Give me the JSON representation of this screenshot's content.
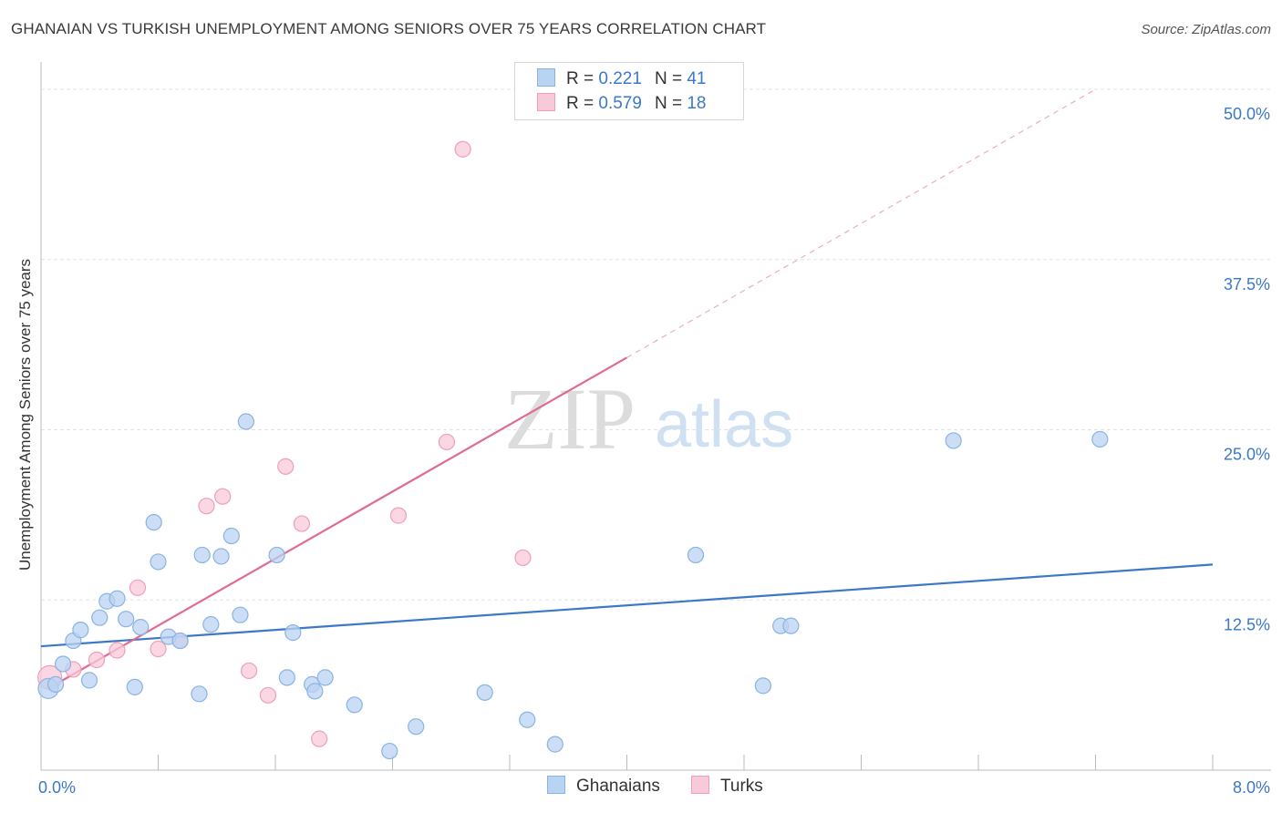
{
  "header": {
    "title": "GHANAIAN VS TURKISH UNEMPLOYMENT AMONG SENIORS OVER 75 YEARS CORRELATION CHART",
    "source": "Source: ZipAtlas.com"
  },
  "watermark": {
    "part1": "ZIP",
    "part2": "atlas"
  },
  "legend_top": {
    "rows": [
      {
        "r_label": "R =",
        "r_value": "0.221",
        "n_label": "N =",
        "n_value": "41"
      },
      {
        "r_label": "R =",
        "r_value": "0.579",
        "n_label": "N =",
        "n_value": "18"
      }
    ]
  },
  "legend_bottom": {
    "items": [
      "Ghanaians",
      "Turks"
    ]
  },
  "colors": {
    "ghanaians_fill": "#b9d3f2",
    "ghanaians_stroke": "#8ab3e3",
    "ghanaians_line": "#3b78c9",
    "turks_fill": "#f8c9d8",
    "turks_stroke": "#ef9fb9",
    "turks_line": "#e06a93",
    "tick_text": "#3b78c9",
    "grid": "#e3e3e3"
  },
  "chart_data": {
    "type": "scatter",
    "title": "GHANAIAN VS TURKISH UNEMPLOYMENT AMONG SENIORS OVER 75 YEARS CORRELATION CHART",
    "xlabel": "",
    "ylabel": "Unemployment Among Seniors over 75 years",
    "xlim": [
      0,
      8
    ],
    "ylim": [
      0,
      50
    ],
    "x_tick_labels": [
      "0.0%",
      "8.0%"
    ],
    "y_ticks": [
      12.5,
      25,
      37.5,
      50
    ],
    "y_tick_labels": [
      "12.5%",
      "25.0%",
      "37.5%",
      "50.0%"
    ],
    "grid": true,
    "legend": "bottom-center",
    "series": [
      {
        "name": "Ghanaians",
        "points": [
          [
            0.05,
            6.0
          ],
          [
            0.1,
            6.3
          ],
          [
            0.15,
            7.8
          ],
          [
            0.22,
            9.5
          ],
          [
            0.27,
            10.3
          ],
          [
            0.33,
            6.6
          ],
          [
            0.4,
            11.2
          ],
          [
            0.45,
            12.4
          ],
          [
            0.52,
            12.6
          ],
          [
            0.58,
            11.1
          ],
          [
            0.64,
            6.1
          ],
          [
            0.68,
            10.5
          ],
          [
            0.77,
            18.2
          ],
          [
            0.8,
            15.3
          ],
          [
            0.87,
            9.8
          ],
          [
            0.95,
            9.5
          ],
          [
            1.08,
            5.6
          ],
          [
            1.1,
            15.8
          ],
          [
            1.16,
            10.7
          ],
          [
            1.23,
            15.7
          ],
          [
            1.3,
            17.2
          ],
          [
            1.36,
            11.4
          ],
          [
            1.4,
            25.6
          ],
          [
            1.61,
            15.8
          ],
          [
            1.68,
            6.8
          ],
          [
            1.72,
            10.1
          ],
          [
            1.85,
            6.3
          ],
          [
            1.87,
            5.8
          ],
          [
            1.94,
            6.8
          ],
          [
            2.14,
            4.8
          ],
          [
            2.38,
            1.4
          ],
          [
            2.56,
            3.2
          ],
          [
            3.03,
            5.7
          ],
          [
            3.32,
            3.7
          ],
          [
            3.51,
            1.9
          ],
          [
            4.47,
            15.8
          ],
          [
            4.93,
            6.2
          ],
          [
            5.05,
            10.6
          ],
          [
            5.12,
            10.6
          ],
          [
            6.23,
            24.2
          ],
          [
            7.23,
            24.3
          ]
        ]
      },
      {
        "name": "Turks",
        "points": [
          [
            0.06,
            6.8
          ],
          [
            0.22,
            7.4
          ],
          [
            0.38,
            8.1
          ],
          [
            0.52,
            8.8
          ],
          [
            0.66,
            13.4
          ],
          [
            0.8,
            8.9
          ],
          [
            0.95,
            9.5
          ],
          [
            1.13,
            19.4
          ],
          [
            1.24,
            20.1
          ],
          [
            1.42,
            7.3
          ],
          [
            1.55,
            5.5
          ],
          [
            1.67,
            22.3
          ],
          [
            1.78,
            18.1
          ],
          [
            1.9,
            2.3
          ],
          [
            2.44,
            18.7
          ],
          [
            2.77,
            24.1
          ],
          [
            2.88,
            45.6
          ],
          [
            3.29,
            15.6
          ]
        ]
      }
    ],
    "trendlines": [
      {
        "series": "Ghanaians",
        "x": [
          0,
          8
        ],
        "y": [
          9.1,
          15.1
        ]
      },
      {
        "series": "Turks",
        "x": [
          0.05,
          4.0
        ],
        "y": [
          6.0,
          30.3
        ],
        "extension_x": [
          4.0,
          7.2
        ],
        "extension_y": [
          30.3,
          50.0
        ]
      }
    ]
  }
}
